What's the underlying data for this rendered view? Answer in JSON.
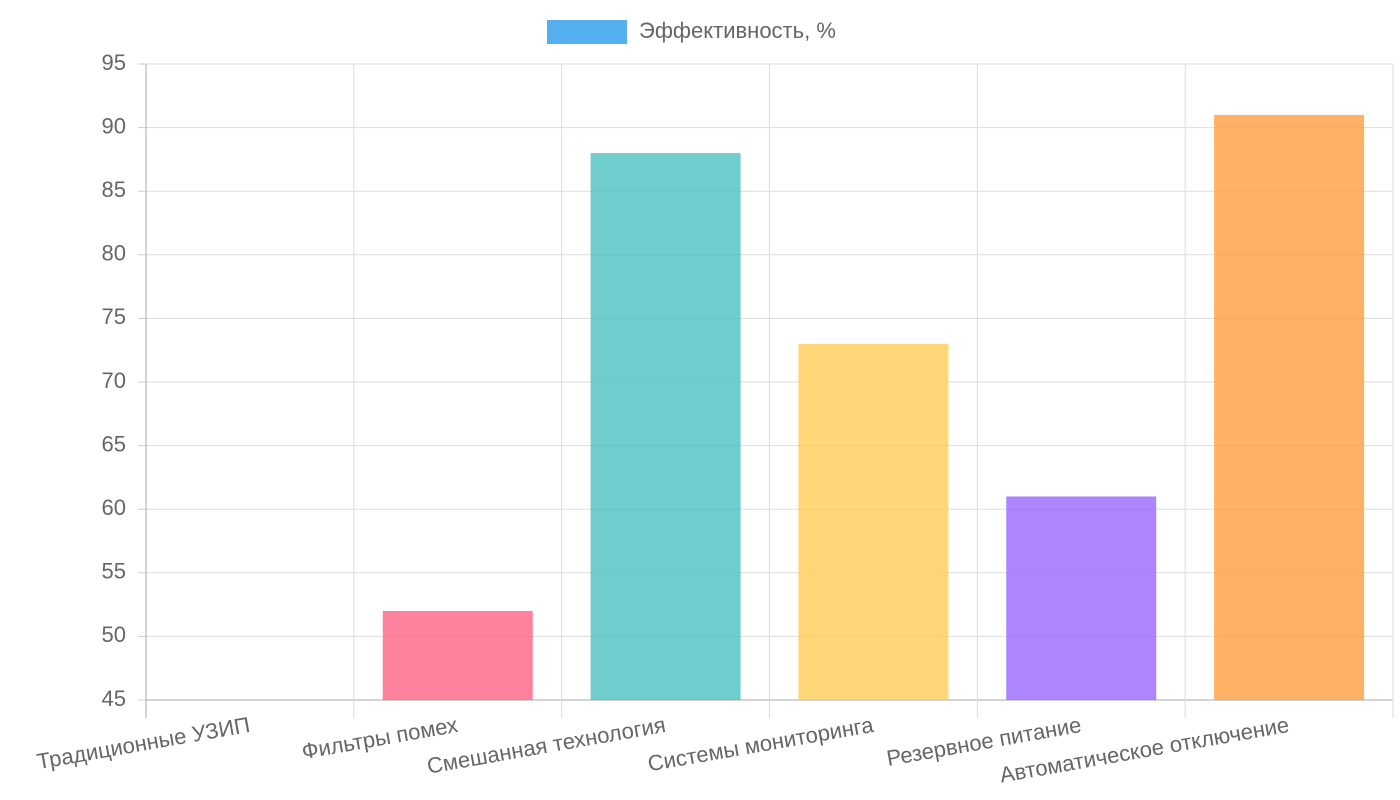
{
  "chart_data": {
    "type": "bar",
    "categories": [
      "Традиционные УЗИП",
      "Фильтры помех",
      "Смешанная технология",
      "Системы мониторинга",
      "Резервное питание",
      "Автоматическое отключение"
    ],
    "series": [
      {
        "name": "Эффективность, %",
        "values": [
          45,
          52,
          88,
          73,
          61,
          91
        ],
        "colors": [
          "#36a2eb",
          "#ff6384",
          "#4bc0c0",
          "#ffcd56",
          "#9966ff",
          "#ff9f40"
        ]
      }
    ],
    "ylim": [
      45,
      95
    ],
    "yticks": [
      45,
      50,
      55,
      60,
      65,
      70,
      75,
      80,
      85,
      90,
      95
    ],
    "grid": true,
    "legend": "top"
  }
}
